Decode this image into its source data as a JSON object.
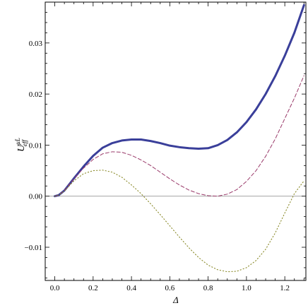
{
  "chart_data": {
    "type": "line",
    "xlabel": "Δ",
    "ylabel": {
      "base": "U",
      "sup": "μL",
      "sub": "eff"
    },
    "xlim": [
      -0.05,
      1.31
    ],
    "ylim": [
      -0.0165,
      0.038
    ],
    "x_ticks": [
      0.0,
      0.2,
      0.4,
      0.6,
      0.8,
      1.0,
      1.2
    ],
    "x_tick_labels": [
      "0.0",
      "0.2",
      "0.4",
      "0.6",
      "0.8",
      "1.0",
      "1.2"
    ],
    "y_ticks": [
      -0.01,
      0.0,
      0.01,
      0.02,
      0.03
    ],
    "y_tick_labels": [
      "−0.01",
      "0.00",
      "0.01",
      "0.02",
      "0.03"
    ],
    "grid": false,
    "series": [
      {
        "style": "solid-thick",
        "color": "#3a3f9a",
        "x": [
          0.0,
          0.02,
          0.05,
          0.1,
          0.15,
          0.2,
          0.25,
          0.3,
          0.35,
          0.4,
          0.45,
          0.5,
          0.55,
          0.6,
          0.65,
          0.7,
          0.75,
          0.8,
          0.85,
          0.9,
          0.95,
          1.0,
          1.05,
          1.1,
          1.15,
          1.2,
          1.25,
          1.3
        ],
        "values": [
          0.0,
          0.0002,
          0.0011,
          0.0035,
          0.0058,
          0.0079,
          0.0095,
          0.0104,
          0.0109,
          0.0111,
          0.0111,
          0.0108,
          0.0104,
          0.0099,
          0.0096,
          0.0094,
          0.0093,
          0.0094,
          0.01,
          0.011,
          0.0125,
          0.0145,
          0.017,
          0.02,
          0.0235,
          0.0275,
          0.032,
          0.0374
        ]
      },
      {
        "style": "dashed",
        "color": "#9a3a6a",
        "x": [
          0.0,
          0.02,
          0.05,
          0.1,
          0.15,
          0.2,
          0.25,
          0.3,
          0.35,
          0.4,
          0.45,
          0.5,
          0.55,
          0.6,
          0.65,
          0.7,
          0.75,
          0.8,
          0.85,
          0.9,
          0.95,
          1.0,
          1.05,
          1.1,
          1.15,
          1.2,
          1.25,
          1.3
        ],
        "values": [
          0.0,
          0.0002,
          0.0011,
          0.0034,
          0.0055,
          0.0072,
          0.0083,
          0.0087,
          0.0086,
          0.008,
          0.0071,
          0.006,
          0.0047,
          0.0034,
          0.0022,
          0.0012,
          0.0005,
          0.0001,
          0.0,
          0.0004,
          0.0013,
          0.0029,
          0.005,
          0.0078,
          0.0112,
          0.0152,
          0.0192,
          0.0236
        ]
      },
      {
        "style": "dotted",
        "color": "#8a8a2a",
        "x": [
          0.0,
          0.02,
          0.05,
          0.1,
          0.15,
          0.2,
          0.25,
          0.3,
          0.35,
          0.4,
          0.45,
          0.5,
          0.55,
          0.6,
          0.65,
          0.7,
          0.75,
          0.8,
          0.85,
          0.9,
          0.95,
          1.0,
          1.05,
          1.1,
          1.15,
          1.2,
          1.25,
          1.3
        ],
        "values": [
          0.0,
          0.0002,
          0.001,
          0.003,
          0.0044,
          0.005,
          0.0051,
          0.0047,
          0.0037,
          0.0022,
          0.0005,
          -0.0015,
          -0.0036,
          -0.0058,
          -0.008,
          -0.0101,
          -0.012,
          -0.0135,
          -0.0144,
          -0.0148,
          -0.0147,
          -0.014,
          -0.0126,
          -0.0104,
          -0.0072,
          -0.0033,
          0.0005,
          0.003
        ]
      }
    ],
    "reference_line_y": 0.0
  }
}
